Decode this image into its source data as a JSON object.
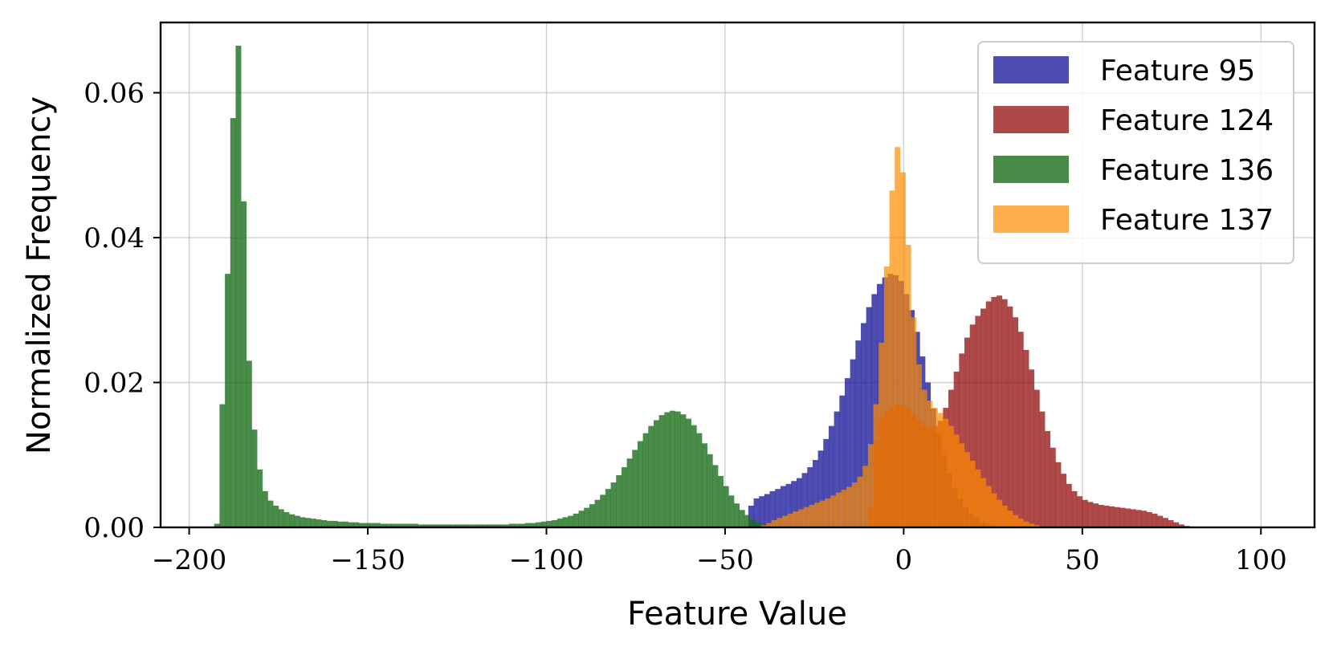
{
  "chart_data": {
    "type": "bar",
    "xlabel": "Feature Value",
    "ylabel": "Normalized Frequency",
    "xlim": [
      -208,
      115
    ],
    "ylim": [
      0,
      0.0697
    ],
    "x_ticks": [
      -200,
      -150,
      -100,
      -50,
      0,
      50,
      100
    ],
    "x_tick_labels": [
      "−200",
      "−150",
      "−100",
      "−50",
      "0",
      "50",
      "100"
    ],
    "y_ticks": [
      0,
      0.02,
      0.04,
      0.06
    ],
    "y_tick_labels": [
      "0.00",
      "0.02",
      "0.04",
      "0.06"
    ],
    "grid": true,
    "legend_position": "top-right",
    "bin_width": 1.5,
    "series": [
      {
        "name": "Feature 95",
        "color": "#1f1f9e",
        "opacity": 0.8,
        "x_start": -45,
        "values": [
          0.0,
          0.003,
          0.004,
          0.0043,
          0.0046,
          0.005,
          0.0053,
          0.0057,
          0.006,
          0.0064,
          0.0068,
          0.0075,
          0.0083,
          0.0093,
          0.0106,
          0.0122,
          0.014,
          0.016,
          0.0182,
          0.0206,
          0.0232,
          0.0258,
          0.0282,
          0.0304,
          0.0322,
          0.0336,
          0.0345,
          0.035,
          0.0348,
          0.034,
          0.0322,
          0.03,
          0.027,
          0.0236,
          0.02,
          0.0164,
          0.013,
          0.01,
          0.0075,
          0.0055,
          0.004,
          0.0028,
          0.0019,
          0.0012,
          0.0008,
          0.0005,
          0.0003,
          0.0001
        ]
      },
      {
        "name": "Feature 124",
        "color": "#9a1c1c",
        "opacity": 0.8,
        "x_start": -10,
        "values": [
          0.0028,
          0.012,
          0.015,
          0.016,
          0.0166,
          0.017,
          0.0168,
          0.0163,
          0.0155,
          0.0147,
          0.014,
          0.0138,
          0.014,
          0.0147,
          0.0165,
          0.019,
          0.0215,
          0.024,
          0.0262,
          0.028,
          0.0292,
          0.0302,
          0.0312,
          0.0318,
          0.032,
          0.0315,
          0.0305,
          0.029,
          0.027,
          0.0245,
          0.0218,
          0.019,
          0.016,
          0.0133,
          0.011,
          0.009,
          0.0074,
          0.006,
          0.005,
          0.0043,
          0.0038,
          0.0035,
          0.0033,
          0.0031,
          0.003,
          0.0029,
          0.0028,
          0.0027,
          0.0026,
          0.0025,
          0.0024,
          0.0023,
          0.0021,
          0.0019,
          0.0016,
          0.0013,
          0.001,
          0.0007,
          0.0004,
          0.0002,
          0.0001
        ]
      },
      {
        "name": "Feature 136",
        "color": "#1c6e1c",
        "opacity": 0.8,
        "x_start": -193,
        "values": [
          0.0005,
          0.017,
          0.035,
          0.0565,
          0.0665,
          0.045,
          0.023,
          0.0135,
          0.008,
          0.005,
          0.0037,
          0.003,
          0.0025,
          0.0021,
          0.0018,
          0.0016,
          0.0014,
          0.0013,
          0.0012,
          0.0011,
          0.001,
          0.0009,
          0.0009,
          0.0008,
          0.0008,
          0.0007,
          0.0007,
          0.0006,
          0.0006,
          0.0006,
          0.0006,
          0.0005,
          0.0005,
          0.0005,
          0.0005,
          0.0005,
          0.0005,
          0.0005,
          0.0004,
          0.0004,
          0.0004,
          0.0004,
          0.0004,
          0.0004,
          0.0004,
          0.0004,
          0.0004,
          0.0004,
          0.0004,
          0.0004,
          0.0004,
          0.0004,
          0.0004,
          0.0004,
          0.0004,
          0.0005,
          0.0005,
          0.0005,
          0.0006,
          0.0006,
          0.0007,
          0.0008,
          0.0009,
          0.001,
          0.0012,
          0.0014,
          0.0016,
          0.0019,
          0.0023,
          0.0027,
          0.0032,
          0.0038,
          0.0045,
          0.0053,
          0.0062,
          0.0072,
          0.0083,
          0.0095,
          0.0107,
          0.0119,
          0.013,
          0.014,
          0.0148,
          0.0155,
          0.0159,
          0.0161,
          0.016,
          0.0156,
          0.015,
          0.0141,
          0.013,
          0.0116,
          0.0101,
          0.0086,
          0.0071,
          0.0057,
          0.0044,
          0.0033,
          0.0024,
          0.0017,
          0.0011,
          0.0007,
          0.0004,
          0.0002,
          0.0001
        ]
      },
      {
        "name": "Feature 137",
        "color": "#ff8c00",
        "opacity": 0.7,
        "x_start": -40,
        "values": [
          0.0003,
          0.0006,
          0.001,
          0.0013,
          0.0016,
          0.0019,
          0.0022,
          0.0025,
          0.0028,
          0.0031,
          0.0034,
          0.0037,
          0.004,
          0.0044,
          0.0048,
          0.0052,
          0.0056,
          0.0062,
          0.007,
          0.0085,
          0.0115,
          0.017,
          0.0255,
          0.036,
          0.0465,
          0.0525,
          0.049,
          0.039,
          0.029,
          0.0225,
          0.019,
          0.0175,
          0.0165,
          0.0158,
          0.015,
          0.014,
          0.0128,
          0.0116,
          0.0104,
          0.0092,
          0.008,
          0.0068,
          0.0057,
          0.0047,
          0.0038,
          0.003,
          0.0023,
          0.0017,
          0.0012,
          0.0008,
          0.0005,
          0.0003,
          0.0001
        ]
      }
    ]
  }
}
